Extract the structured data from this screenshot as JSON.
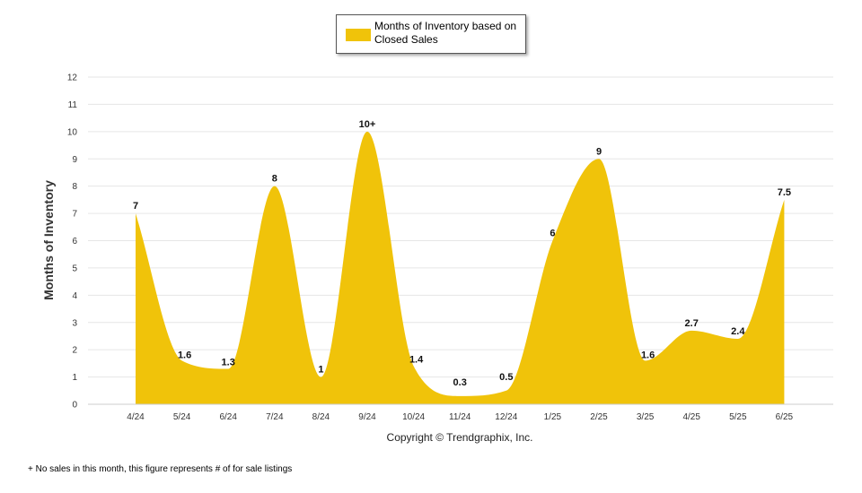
{
  "chart_data": {
    "type": "area",
    "categories": [
      "4/24",
      "5/24",
      "6/24",
      "7/24",
      "8/24",
      "9/24",
      "10/24",
      "11/24",
      "12/24",
      "1/25",
      "2/25",
      "3/25",
      "4/25",
      "5/25",
      "6/25"
    ],
    "series": [
      {
        "name": "Months of Inventory based on Closed Sales",
        "values": [
          7,
          1.6,
          1.3,
          8,
          1,
          10,
          1.4,
          0.3,
          0.5,
          6,
          9,
          1.6,
          2.7,
          2.4,
          7.5
        ]
      }
    ],
    "data_labels": [
      "7",
      "1.6",
      "1.3",
      "8",
      "1",
      "10+",
      "1.4",
      "0.3",
      "0.5",
      "6",
      "9",
      "1.6",
      "2.7",
      "2.4",
      "7.5"
    ],
    "ylabel": "Months of Inventory",
    "ylim": [
      0,
      12
    ],
    "yticks": [
      "0",
      "1",
      "2",
      "3",
      "4",
      "5",
      "6",
      "7",
      "8",
      "9",
      "10",
      "11",
      "12"
    ],
    "grid": true,
    "legend_position": "top-center",
    "fill_color": "#f0c30a"
  },
  "legend": {
    "label": "Months of Inventory based on Closed Sales"
  },
  "copyright": "Copyright © Trendgraphix, Inc.",
  "footnote": "+ No sales in this month, this figure represents # of for sale listings"
}
